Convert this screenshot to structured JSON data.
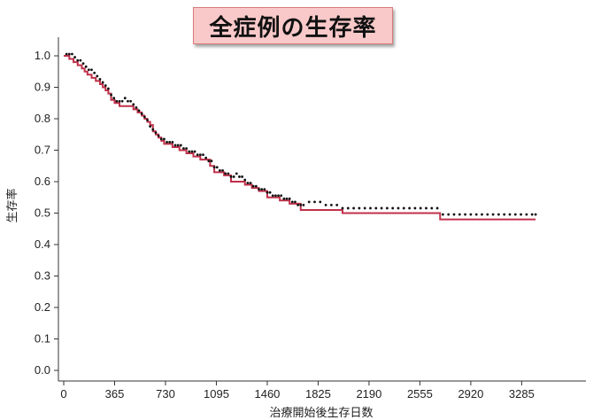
{
  "chart_data": {
    "type": "line",
    "title": "全症例の生存率",
    "xlabel": "治療開始後生存日数",
    "ylabel": "生存率",
    "xlim": [
      0,
      3400
    ],
    "ylim": [
      0,
      1.05
    ],
    "x_ticks": [
      0,
      365,
      730,
      1095,
      1460,
      1825,
      2190,
      2555,
      2920,
      3285
    ],
    "y_ticks": [
      "0.0",
      "0.1",
      "0.2",
      "0.3",
      "0.4",
      "0.5",
      "0.6",
      "0.7",
      "0.8",
      "0.9",
      "1.0"
    ],
    "colors": {
      "step_line": "#c0304a",
      "points": "#111111"
    },
    "series": [
      {
        "style": "step",
        "points": [
          [
            0,
            1.0
          ],
          [
            40,
            0.99
          ],
          [
            70,
            0.98
          ],
          [
            100,
            0.97
          ],
          [
            130,
            0.96
          ],
          [
            150,
            0.95
          ],
          [
            170,
            0.94
          ],
          [
            200,
            0.93
          ],
          [
            230,
            0.92
          ],
          [
            260,
            0.91
          ],
          [
            280,
            0.9
          ],
          [
            300,
            0.89
          ],
          [
            320,
            0.88
          ],
          [
            340,
            0.86
          ],
          [
            365,
            0.85
          ],
          [
            400,
            0.84
          ],
          [
            500,
            0.83
          ],
          [
            530,
            0.82
          ],
          [
            560,
            0.81
          ],
          [
            580,
            0.8
          ],
          [
            600,
            0.79
          ],
          [
            620,
            0.78
          ],
          [
            640,
            0.76
          ],
          [
            660,
            0.75
          ],
          [
            680,
            0.74
          ],
          [
            700,
            0.73
          ],
          [
            720,
            0.72
          ],
          [
            780,
            0.71
          ],
          [
            830,
            0.7
          ],
          [
            880,
            0.69
          ],
          [
            930,
            0.68
          ],
          [
            980,
            0.67
          ],
          [
            1050,
            0.65
          ],
          [
            1080,
            0.63
          ],
          [
            1150,
            0.62
          ],
          [
            1200,
            0.6
          ],
          [
            1300,
            0.59
          ],
          [
            1350,
            0.58
          ],
          [
            1400,
            0.57
          ],
          [
            1460,
            0.55
          ],
          [
            1550,
            0.54
          ],
          [
            1620,
            0.53
          ],
          [
            1700,
            0.51
          ],
          [
            2000,
            0.5
          ],
          [
            2700,
            0.48
          ],
          [
            3385,
            0.48
          ]
        ]
      },
      {
        "style": "dots",
        "points": [
          [
            20,
            1.0
          ],
          [
            40,
            1.0
          ],
          [
            60,
            1.0
          ],
          [
            80,
            0.99
          ],
          [
            100,
            0.98
          ],
          [
            120,
            0.98
          ],
          [
            140,
            0.97
          ],
          [
            160,
            0.96
          ],
          [
            180,
            0.95
          ],
          [
            200,
            0.95
          ],
          [
            220,
            0.94
          ],
          [
            240,
            0.93
          ],
          [
            260,
            0.92
          ],
          [
            280,
            0.91
          ],
          [
            300,
            0.9
          ],
          [
            320,
            0.89
          ],
          [
            340,
            0.87
          ],
          [
            360,
            0.86
          ],
          [
            380,
            0.85
          ],
          [
            400,
            0.85
          ],
          [
            420,
            0.85
          ],
          [
            440,
            0.86
          ],
          [
            460,
            0.85
          ],
          [
            480,
            0.85
          ],
          [
            500,
            0.84
          ],
          [
            520,
            0.83
          ],
          [
            540,
            0.82
          ],
          [
            560,
            0.81
          ],
          [
            580,
            0.8
          ],
          [
            600,
            0.79
          ],
          [
            620,
            0.77
          ],
          [
            640,
            0.76
          ],
          [
            660,
            0.75
          ],
          [
            680,
            0.74
          ],
          [
            700,
            0.73
          ],
          [
            720,
            0.73
          ],
          [
            740,
            0.72
          ],
          [
            760,
            0.72
          ],
          [
            780,
            0.72
          ],
          [
            800,
            0.71
          ],
          [
            820,
            0.71
          ],
          [
            840,
            0.71
          ],
          [
            860,
            0.7
          ],
          [
            880,
            0.7
          ],
          [
            900,
            0.69
          ],
          [
            920,
            0.69
          ],
          [
            940,
            0.69
          ],
          [
            960,
            0.68
          ],
          [
            980,
            0.68
          ],
          [
            1000,
            0.68
          ],
          [
            1020,
            0.67
          ],
          [
            1040,
            0.66
          ],
          [
            1060,
            0.66
          ],
          [
            1080,
            0.64
          ],
          [
            1100,
            0.64
          ],
          [
            1120,
            0.63
          ],
          [
            1140,
            0.63
          ],
          [
            1160,
            0.62
          ],
          [
            1180,
            0.62
          ],
          [
            1200,
            0.61
          ],
          [
            1220,
            0.61
          ],
          [
            1240,
            0.62
          ],
          [
            1260,
            0.61
          ],
          [
            1280,
            0.61
          ],
          [
            1300,
            0.6
          ],
          [
            1320,
            0.59
          ],
          [
            1340,
            0.59
          ],
          [
            1360,
            0.58
          ],
          [
            1380,
            0.58
          ],
          [
            1400,
            0.57
          ],
          [
            1420,
            0.57
          ],
          [
            1440,
            0.57
          ],
          [
            1460,
            0.56
          ],
          [
            1480,
            0.56
          ],
          [
            1500,
            0.55
          ],
          [
            1520,
            0.55
          ],
          [
            1540,
            0.55
          ],
          [
            1560,
            0.55
          ],
          [
            1580,
            0.54
          ],
          [
            1600,
            0.54
          ],
          [
            1620,
            0.54
          ],
          [
            1640,
            0.53
          ],
          [
            1660,
            0.53
          ],
          [
            1680,
            0.52
          ],
          [
            1700,
            0.52
          ],
          [
            1720,
            0.52
          ],
          [
            1760,
            0.53
          ],
          [
            1800,
            0.53
          ],
          [
            1840,
            0.53
          ],
          [
            1880,
            0.52
          ],
          [
            1920,
            0.52
          ],
          [
            1960,
            0.52
          ],
          [
            2000,
            0.51
          ],
          [
            2040,
            0.51
          ],
          [
            2080,
            0.51
          ],
          [
            2120,
            0.51
          ],
          [
            2160,
            0.51
          ],
          [
            2200,
            0.51
          ],
          [
            2240,
            0.51
          ],
          [
            2280,
            0.51
          ],
          [
            2320,
            0.51
          ],
          [
            2360,
            0.51
          ],
          [
            2400,
            0.51
          ],
          [
            2440,
            0.51
          ],
          [
            2480,
            0.51
          ],
          [
            2520,
            0.51
          ],
          [
            2560,
            0.51
          ],
          [
            2600,
            0.51
          ],
          [
            2640,
            0.51
          ],
          [
            2680,
            0.51
          ],
          [
            2720,
            0.49
          ],
          [
            2760,
            0.49
          ],
          [
            2800,
            0.49
          ],
          [
            2840,
            0.49
          ],
          [
            2880,
            0.49
          ],
          [
            2920,
            0.49
          ],
          [
            2960,
            0.49
          ],
          [
            3000,
            0.49
          ],
          [
            3040,
            0.49
          ],
          [
            3080,
            0.49
          ],
          [
            3120,
            0.49
          ],
          [
            3160,
            0.49
          ],
          [
            3200,
            0.49
          ],
          [
            3240,
            0.49
          ],
          [
            3280,
            0.49
          ],
          [
            3320,
            0.49
          ],
          [
            3360,
            0.49
          ],
          [
            3385,
            0.49
          ]
        ]
      }
    ]
  }
}
